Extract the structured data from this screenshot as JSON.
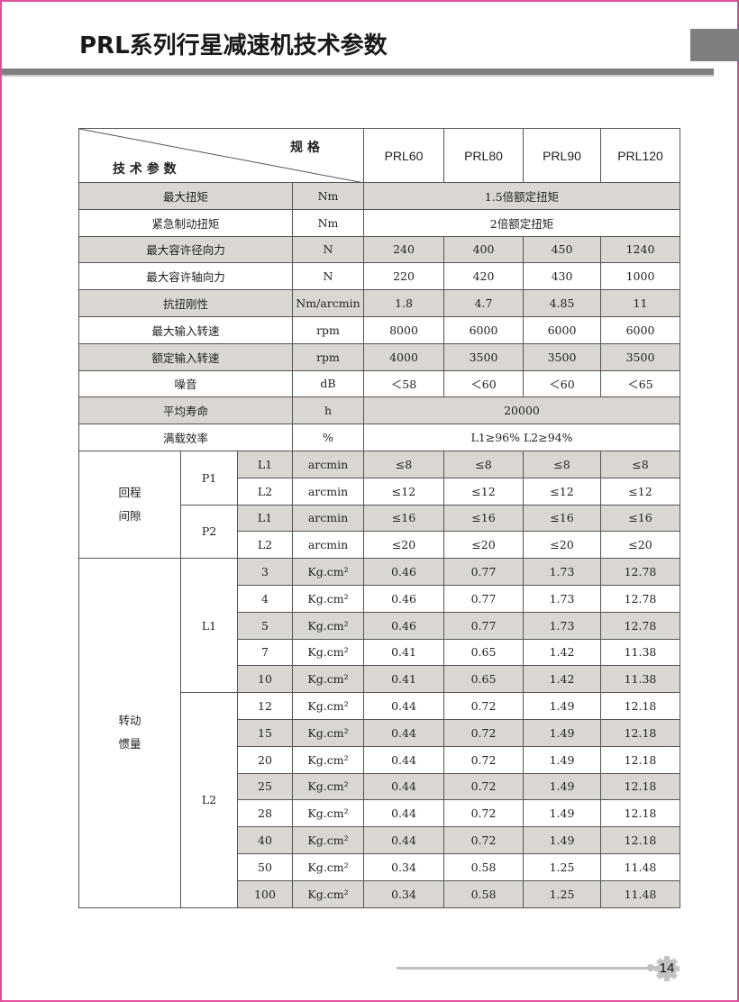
{
  "page": {
    "title": "PRL系列行星减速机技术参数",
    "page_number": "14",
    "border_color": "#e0509a",
    "shade_color": "#dad7d2"
  },
  "table": {
    "header": {
      "spec_label": "规 格",
      "param_label": "技 术 参 数",
      "models": [
        "PRL60",
        "PRL80",
        "PRL90",
        "PRL120"
      ]
    },
    "rows": [
      {
        "name": "最大扭矩",
        "unit": "Nm",
        "merged": "1.5倍额定扭矩",
        "shade": true
      },
      {
        "name": "紧急制动扭矩",
        "unit": "Nm",
        "merged": "2倍额定扭矩",
        "shade": false
      },
      {
        "name": "最大容许径向力",
        "unit": "N",
        "values": [
          "240",
          "400",
          "450",
          "1240"
        ],
        "shade": true
      },
      {
        "name": "最大容许轴向力",
        "unit": "N",
        "values": [
          "220",
          "420",
          "430",
          "1000"
        ],
        "shade": false
      },
      {
        "name": "抗扭刚性",
        "unit": "Nm/arcmin",
        "values": [
          "1.8",
          "4.7",
          "4.85",
          "11"
        ],
        "shade": true
      },
      {
        "name": "最大输入转速",
        "unit": "rpm",
        "values": [
          "8000",
          "6000",
          "6000",
          "6000"
        ],
        "shade": false
      },
      {
        "name": "额定输入转速",
        "unit": "rpm",
        "values": [
          "4000",
          "3500",
          "3500",
          "3500"
        ],
        "shade": true
      },
      {
        "name": "噪音",
        "unit": "dB",
        "values": [
          "＜58",
          "＜60",
          "＜60",
          "＜65"
        ],
        "shade": false
      },
      {
        "name": "平均寿命",
        "unit": "h",
        "merged": "20000",
        "shade": true
      },
      {
        "name": "满载效率",
        "unit": "%",
        "merged": "L1≥96%    L2≥94%",
        "shade": false
      }
    ],
    "groups": [
      {
        "name": "回程\n间隙",
        "subgroups": [
          {
            "name": "P1",
            "rows": [
              {
                "stage": "L1",
                "unit": "arcmin",
                "values": [
                  "≤8",
                  "≤8",
                  "≤8",
                  "≤8"
                ],
                "shade": true
              },
              {
                "stage": "L2",
                "unit": "arcmin",
                "values": [
                  "≤12",
                  "≤12",
                  "≤12",
                  "≤12"
                ],
                "shade": false
              }
            ]
          },
          {
            "name": "P2",
            "rows": [
              {
                "stage": "L1",
                "unit": "arcmin",
                "values": [
                  "≤16",
                  "≤16",
                  "≤16",
                  "≤16"
                ],
                "shade": true
              },
              {
                "stage": "L2",
                "unit": "arcmin",
                "values": [
                  "≤20",
                  "≤20",
                  "≤20",
                  "≤20"
                ],
                "shade": false
              }
            ]
          }
        ]
      },
      {
        "name": "转动\n惯量",
        "subgroups": [
          {
            "name": "L1",
            "rows": [
              {
                "stage": "3",
                "unit": "Kg.cm²",
                "values": [
                  "0.46",
                  "0.77",
                  "1.73",
                  "12.78"
                ],
                "shade": true
              },
              {
                "stage": "4",
                "unit": "Kg.cm²",
                "values": [
                  "0.46",
                  "0.77",
                  "1.73",
                  "12.78"
                ],
                "shade": false
              },
              {
                "stage": "5",
                "unit": "Kg.cm²",
                "values": [
                  "0.46",
                  "0.77",
                  "1.73",
                  "12.78"
                ],
                "shade": true
              },
              {
                "stage": "7",
                "unit": "Kg.cm²",
                "values": [
                  "0.41",
                  "0.65",
                  "1.42",
                  "11.38"
                ],
                "shade": false
              },
              {
                "stage": "10",
                "unit": "Kg.cm²",
                "values": [
                  "0.41",
                  "0.65",
                  "1.42",
                  "11.38"
                ],
                "shade": true
              }
            ]
          },
          {
            "name": "L2",
            "rows": [
              {
                "stage": "12",
                "unit": "Kg.cm²",
                "values": [
                  "0.44",
                  "0.72",
                  "1.49",
                  "12.18"
                ],
                "shade": false
              },
              {
                "stage": "15",
                "unit": "Kg.cm²",
                "values": [
                  "0.44",
                  "0.72",
                  "1.49",
                  "12.18"
                ],
                "shade": true
              },
              {
                "stage": "20",
                "unit": "Kg.cm²",
                "values": [
                  "0.44",
                  "0.72",
                  "1.49",
                  "12.18"
                ],
                "shade": false
              },
              {
                "stage": "25",
                "unit": "Kg.cm²",
                "values": [
                  "0.44",
                  "0.72",
                  "1.49",
                  "12.18"
                ],
                "shade": true
              },
              {
                "stage": "28",
                "unit": "Kg.cm²",
                "values": [
                  "0.44",
                  "0.72",
                  "1.49",
                  "12.18"
                ],
                "shade": false
              },
              {
                "stage": "40",
                "unit": "Kg.cm²",
                "values": [
                  "0.44",
                  "0.72",
                  "1.49",
                  "12.18"
                ],
                "shade": true
              },
              {
                "stage": "50",
                "unit": "Kg.cm²",
                "values": [
                  "0.34",
                  "0.58",
                  "1.25",
                  "11.48"
                ],
                "shade": false
              },
              {
                "stage": "100",
                "unit": "Kg.cm²",
                "values": [
                  "0.34",
                  "0.58",
                  "1.25",
                  "11.48"
                ],
                "shade": true
              }
            ]
          }
        ]
      }
    ]
  }
}
